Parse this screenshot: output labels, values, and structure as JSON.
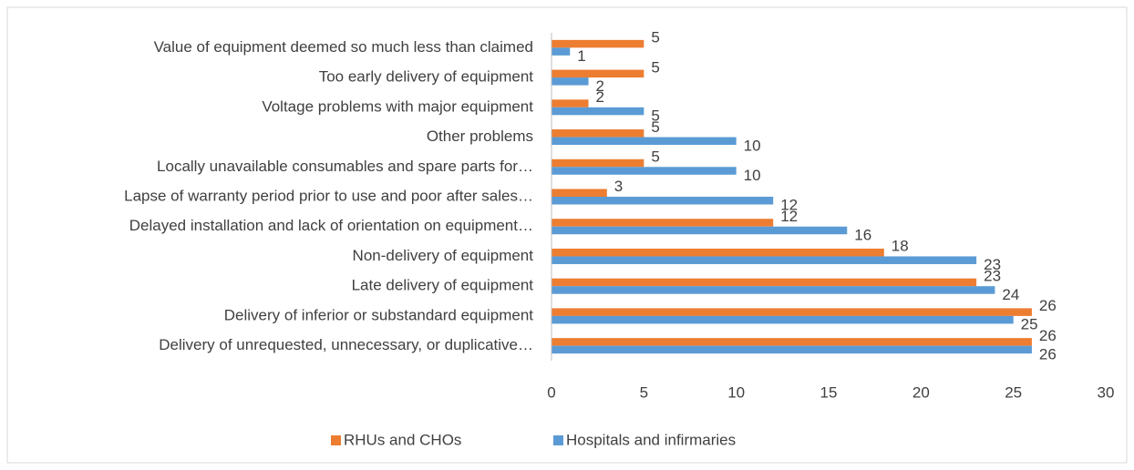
{
  "chart_data": {
    "type": "hbar",
    "categories": [
      "Value of equipment deemed so much less than claimed",
      "Too early delivery of equipment",
      "Voltage problems with major equipment",
      "Other problems",
      "Locally unavailable consumables and spare parts for…",
      "Lapse of warranty period prior to use and poor after sales…",
      "Delayed installation and lack of orientation on equipment…",
      "Non-delivery of equipment",
      "Late delivery of equipment",
      "Delivery of inferior or substandard equipment",
      "Delivery of unrequested, unnecessary, or duplicative…"
    ],
    "series": [
      {
        "name": "RHUs and CHOs",
        "color": "#ed7d31",
        "values": [
          5,
          5,
          2,
          5,
          5,
          3,
          12,
          18,
          23,
          26,
          26
        ]
      },
      {
        "name": "Hospitals and infirmaries",
        "color": "#5b9bd5",
        "values": [
          1,
          2,
          5,
          10,
          10,
          12,
          16,
          23,
          24,
          25,
          26
        ]
      }
    ],
    "xlim": [
      0,
      30
    ],
    "xticks": [
      0,
      5,
      10,
      15,
      20,
      25,
      30
    ],
    "grid": false,
    "legend": "bottom"
  }
}
